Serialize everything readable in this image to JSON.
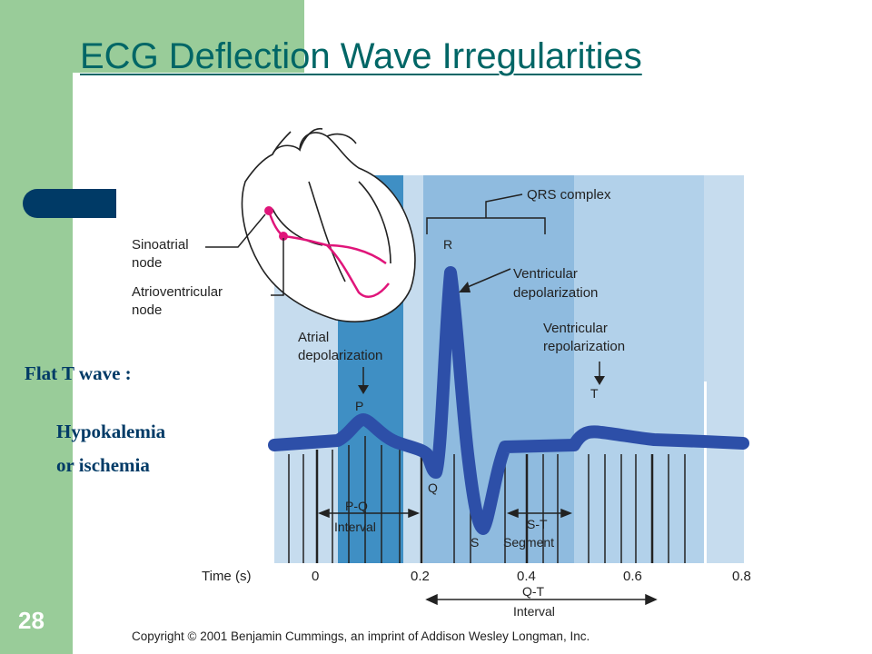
{
  "title": "ECG Deflection Wave Irregularities",
  "notes": {
    "flat_t_wave": "Flat T wave :",
    "cause_line1": "Hypokalemia",
    "cause_line2": "or ischemia"
  },
  "slide_number": "28",
  "figure": {
    "heart_labels": {
      "sinoatrial_1": "Sinoatrial",
      "sinoatrial_2": "node",
      "atrioventricular_1": "Atrioventricular",
      "atrioventricular_2": "node"
    },
    "wave_labels": {
      "atrial_1": "Atrial",
      "atrial_2": "depolarization",
      "qrs": "QRS complex",
      "vent_dep_1": "Ventricular",
      "vent_dep_2": "depolarization",
      "vent_rep_1": "Ventricular",
      "vent_rep_2": "repolarization",
      "P": "P",
      "Q": "Q",
      "R": "R",
      "S": "S",
      "T": "T"
    },
    "interval_labels": {
      "pq_1": "P-Q",
      "pq_2": "Interval",
      "st_1": "S-T",
      "st_2": "Segment",
      "qt_1": "Q-T",
      "qt_2": "Interval"
    },
    "time_axis": {
      "label": "Time (s)",
      "ticks": [
        "0",
        "0.2",
        "0.4",
        "0.6",
        "0.8"
      ]
    },
    "copyright": "Copyright © 2001 Benjamin Cummings, an imprint of Addison Wesley Longman, Inc."
  },
  "colors": {
    "green_band": "#99cc99",
    "title": "#006666",
    "accent": "#003a66",
    "trace": "#2d4fa8",
    "nerve": "#e0157a"
  }
}
